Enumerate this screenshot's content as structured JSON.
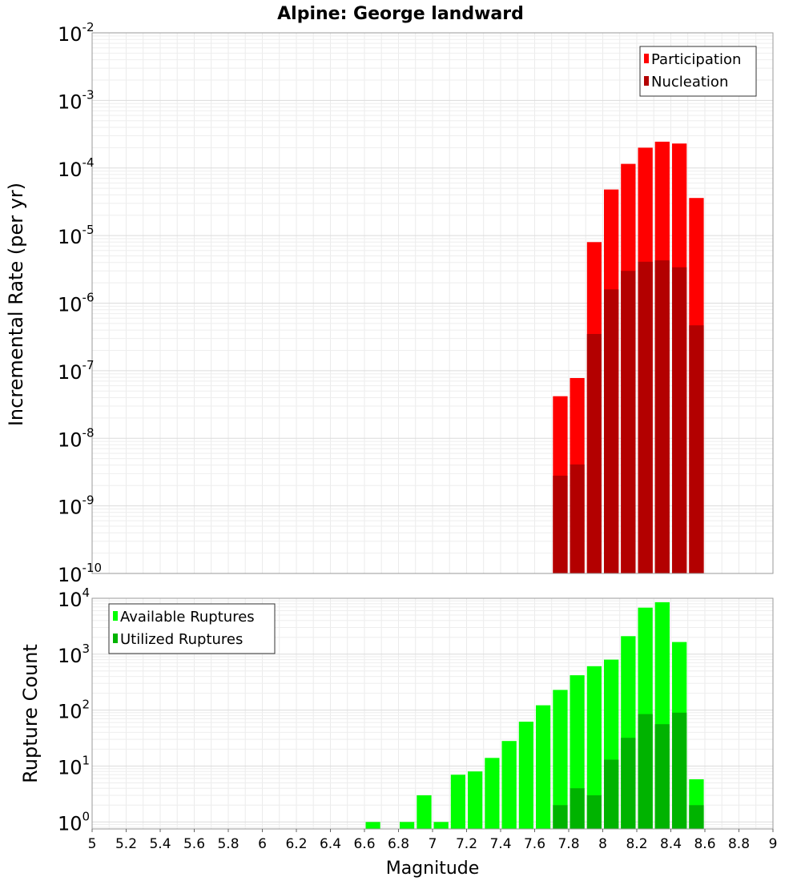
{
  "chart_data": [
    {
      "type": "bar",
      "title": "Alpine: George landward",
      "ylabel": "Incremental Rate (per yr)",
      "xlabel": "",
      "yscale": "log",
      "ylim": [
        1e-10,
        0.01
      ],
      "xlim": [
        5,
        9
      ],
      "bin_width": 0.1,
      "y_ticks": [
        {
          "base": "10",
          "exp": "-10",
          "value": 1e-10
        },
        {
          "base": "10",
          "exp": "-9",
          "value": 1e-09
        },
        {
          "base": "10",
          "exp": "-8",
          "value": 1e-08
        },
        {
          "base": "10",
          "exp": "-7",
          "value": 1e-07
        },
        {
          "base": "10",
          "exp": "-6",
          "value": 1e-06
        },
        {
          "base": "10",
          "exp": "-5",
          "value": 1e-05
        },
        {
          "base": "10",
          "exp": "-4",
          "value": 0.0001
        },
        {
          "base": "10",
          "exp": "-3",
          "value": 0.001
        },
        {
          "base": "10",
          "exp": "-2",
          "value": 0.01
        }
      ],
      "legend": {
        "placement": "top-right",
        "entries": [
          "Participation",
          "Nucleation"
        ]
      },
      "series": [
        {
          "name": "Participation",
          "color": "#ff0000",
          "x": [
            7.75,
            7.85,
            7.95,
            8.05,
            8.15,
            8.25,
            8.35,
            8.45,
            8.55
          ],
          "values": [
            4.2e-08,
            7.8e-08,
            8e-06,
            4.8e-05,
            0.000115,
            0.0002,
            0.000245,
            0.00023,
            3.6e-05
          ]
        },
        {
          "name": "Nucleation",
          "color": "#b30000",
          "x": [
            7.75,
            7.85,
            7.95,
            8.05,
            8.15,
            8.25,
            8.35,
            8.45,
            8.55
          ],
          "values": [
            2.8e-09,
            4.1e-09,
            3.5e-07,
            1.6e-06,
            3e-06,
            4.1e-06,
            4.3e-06,
            3.4e-06,
            4.7e-07
          ]
        }
      ]
    },
    {
      "type": "bar",
      "title": "",
      "ylabel": "Rupture Count",
      "xlabel": "Magnitude",
      "yscale": "log",
      "ylim": [
        0.75,
        10000
      ],
      "xlim": [
        5,
        9
      ],
      "bin_width": 0.1,
      "y_ticks": [
        {
          "base": "10",
          "exp": "0",
          "value": 1
        },
        {
          "base": "10",
          "exp": "1",
          "value": 10
        },
        {
          "base": "10",
          "exp": "2",
          "value": 100
        },
        {
          "base": "10",
          "exp": "3",
          "value": 1000
        },
        {
          "base": "10",
          "exp": "4",
          "value": 10000
        }
      ],
      "x_ticks": [
        "5",
        "5.2",
        "5.4",
        "5.6",
        "5.8",
        "6",
        "6.2",
        "6.4",
        "6.6",
        "6.8",
        "7",
        "7.2",
        "7.4",
        "7.6",
        "7.8",
        "8",
        "8.2",
        "8.4",
        "8.6",
        "8.8",
        "9"
      ],
      "legend": {
        "placement": "top-left",
        "entries": [
          "Available Ruptures",
          "Utilized Ruptures"
        ]
      },
      "series": [
        {
          "name": "Available Ruptures",
          "color": "#00ff00",
          "x": [
            6.65,
            6.85,
            6.95,
            7.05,
            7.15,
            7.25,
            7.35,
            7.45,
            7.55,
            7.65,
            7.75,
            7.85,
            7.95,
            8.05,
            8.15,
            8.25,
            8.35,
            8.45,
            8.55
          ],
          "values": [
            1,
            1,
            3,
            1,
            7,
            8,
            14,
            28,
            62,
            122,
            230,
            420,
            610,
            800,
            2100,
            6800,
            8500,
            1650,
            5.8
          ]
        },
        {
          "name": "Utilized Ruptures",
          "color": "#00b300",
          "x": [
            7.75,
            7.85,
            7.95,
            8.05,
            8.15,
            8.25,
            8.35,
            8.45,
            8.55
          ],
          "values": [
            2,
            4,
            3,
            13,
            32,
            85,
            56,
            90,
            2
          ]
        }
      ]
    }
  ]
}
